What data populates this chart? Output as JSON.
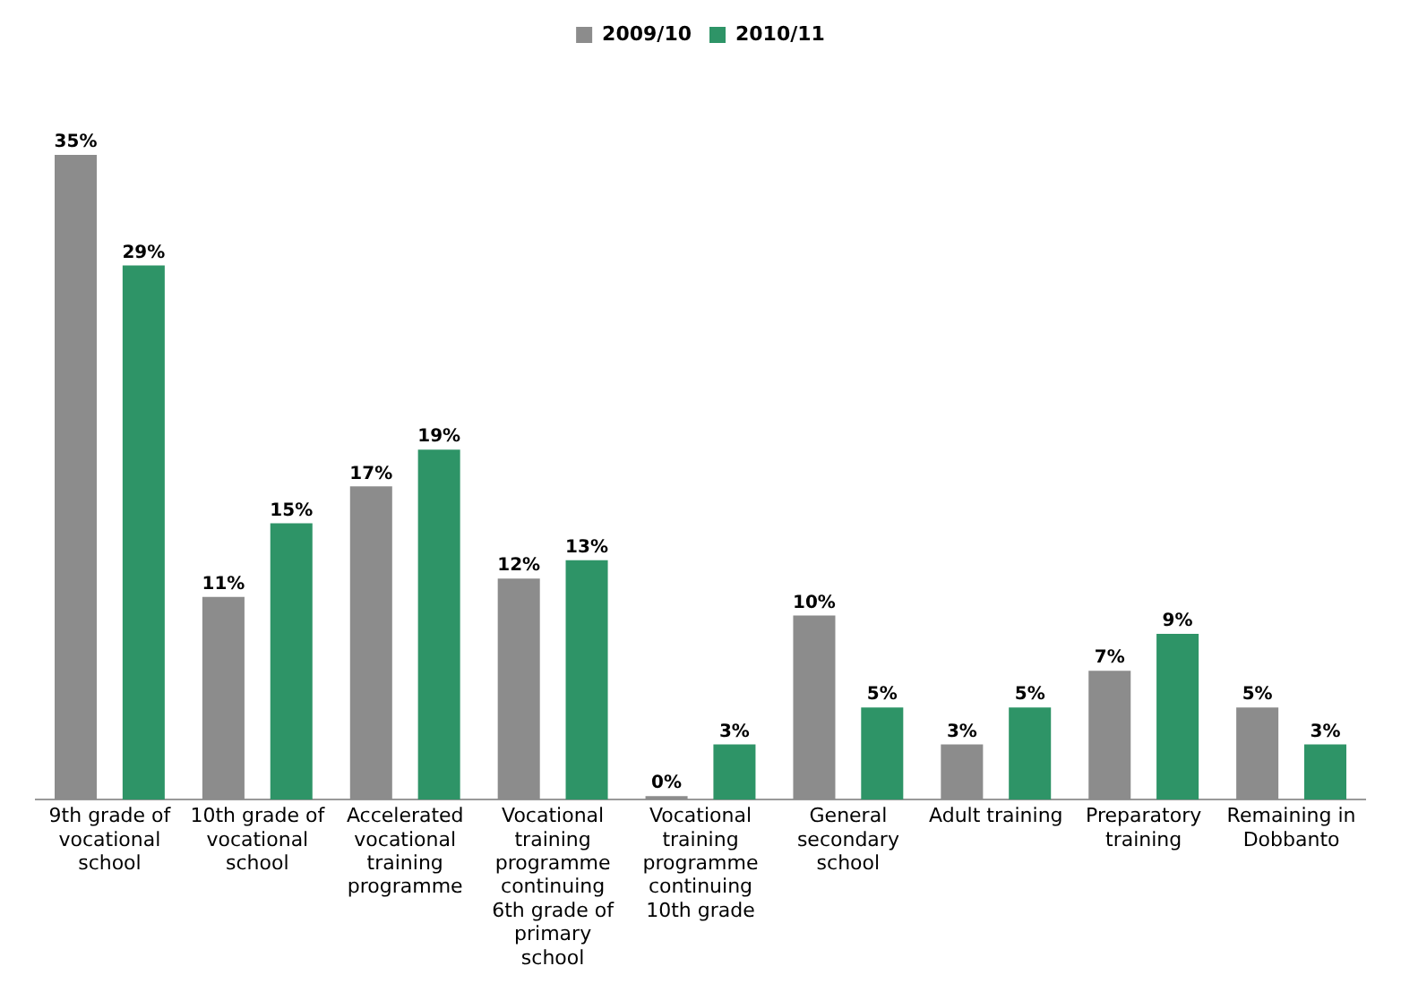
{
  "chart_data": {
    "type": "bar",
    "categories": [
      "9th grade of vocational school",
      "10th grade of vocational school",
      "Accelerated vocational training programme",
      "Vocational training programme continuing 6th grade of primary school",
      "Vocational training programme continuing 10th grade",
      "General secondary school",
      "Adult training",
      "Preparatory training",
      "Remaining in Dobbanto"
    ],
    "series": [
      {
        "name": "2009/10",
        "color": "#8c8c8c",
        "values": [
          35,
          11,
          17,
          12,
          0,
          10,
          3,
          7,
          5
        ],
        "value_labels": [
          "35%",
          "11%",
          "17%",
          "12%",
          "0%",
          "10%",
          "3%",
          "7%",
          "5%"
        ]
      },
      {
        "name": "2010/11",
        "color": "#2e9467",
        "values": [
          29,
          15,
          19,
          13,
          3,
          5,
          5,
          9,
          3
        ],
        "value_labels": [
          "29%",
          "15%",
          "19%",
          "13%",
          "3%",
          "5%",
          "5%",
          "9%",
          "3%"
        ]
      }
    ],
    "legend": "top",
    "grid": false
  }
}
